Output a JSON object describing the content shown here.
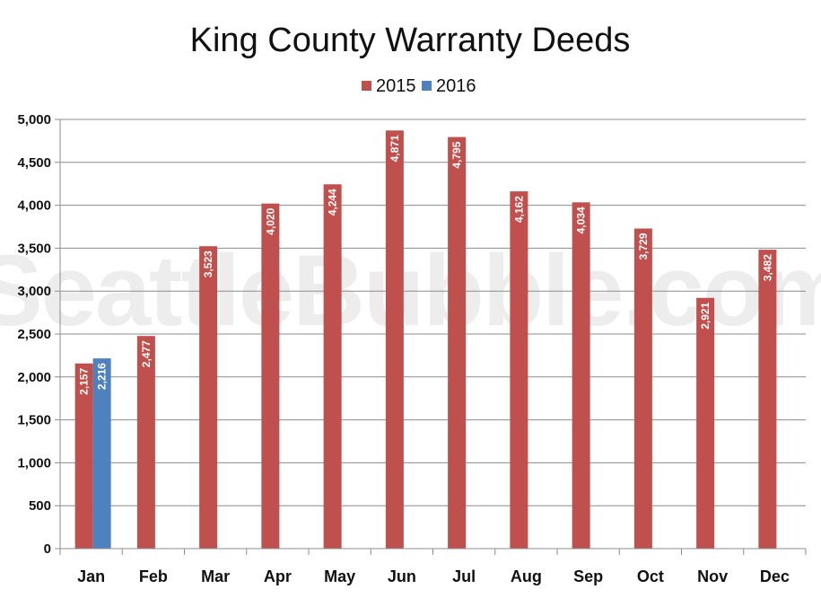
{
  "chart_data": {
    "type": "bar",
    "title": "King County Warranty Deeds",
    "watermark": "SeattleBubble.com",
    "categories": [
      "Jan",
      "Feb",
      "Mar",
      "Apr",
      "May",
      "Jun",
      "Jul",
      "Aug",
      "Sep",
      "Oct",
      "Nov",
      "Dec"
    ],
    "series": [
      {
        "name": "2015",
        "color": "#c0504d",
        "values": [
          2157,
          2477,
          3523,
          4020,
          4244,
          4871,
          4795,
          4162,
          4034,
          3729,
          2921,
          3482
        ],
        "labels": [
          "2,157",
          "2,477",
          "3,523",
          "4,020",
          "4,244",
          "4,871",
          "4,795",
          "4,162",
          "4,034",
          "3,729",
          "2,921",
          "3,482"
        ]
      },
      {
        "name": "2016",
        "color": "#4f81bd",
        "values": [
          2216,
          null,
          null,
          null,
          null,
          null,
          null,
          null,
          null,
          null,
          null,
          null
        ],
        "labels": [
          "2,216",
          "",
          "",
          "",
          "",
          "",
          "",
          "",
          "",
          "",
          "",
          ""
        ]
      }
    ],
    "ylim": [
      0,
      5000
    ],
    "yticks": [
      0,
      500,
      1000,
      1500,
      2000,
      2500,
      3000,
      3500,
      4000,
      4500,
      5000
    ],
    "ytick_labels": [
      "0",
      "500",
      "1,000",
      "1,500",
      "2,000",
      "2,500",
      "3,000",
      "3,500",
      "4,000",
      "4,500",
      "5,000"
    ],
    "xlabel": "",
    "ylabel": "",
    "grid": true,
    "legend_position": "top-center"
  }
}
